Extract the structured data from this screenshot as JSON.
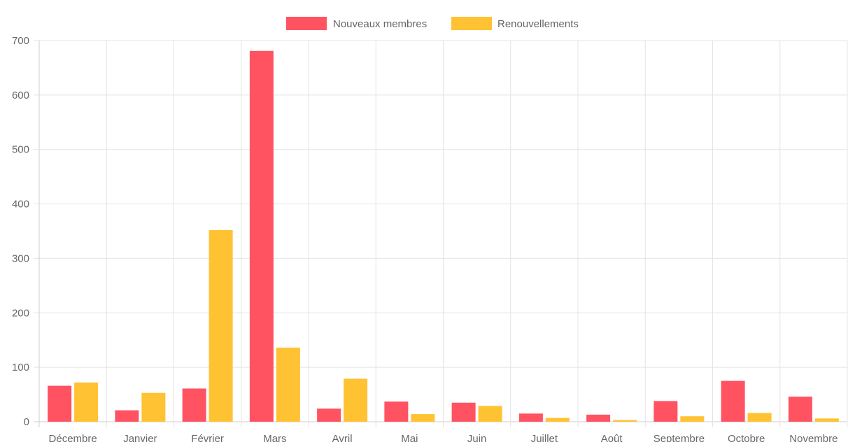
{
  "colors": {
    "series_1": "#ff5362",
    "series_2": "#ffc233",
    "grid": "#e4e4e4",
    "text": "#666666"
  },
  "chart_data": {
    "type": "bar",
    "title": "",
    "xlabel": "",
    "ylabel": "",
    "ylim": [
      0,
      700
    ],
    "yticks": [
      0,
      100,
      200,
      300,
      400,
      500,
      600,
      700
    ],
    "grid": true,
    "legend_position": "top-center",
    "categories": [
      "Décembre",
      "Janvier",
      "Février",
      "Mars",
      "Avril",
      "Mai",
      "Juin",
      "Juillet",
      "Août",
      "Septembre",
      "Octobre",
      "Novembre"
    ],
    "series": [
      {
        "name": "Nouveaux membres",
        "color": "#ff5362",
        "values": [
          66,
          21,
          61,
          681,
          24,
          37,
          35,
          15,
          13,
          38,
          75,
          46
        ]
      },
      {
        "name": "Renouvellements",
        "color": "#ffc233",
        "values": [
          72,
          53,
          352,
          136,
          79,
          14,
          29,
          7,
          3,
          10,
          16,
          6
        ]
      }
    ]
  }
}
